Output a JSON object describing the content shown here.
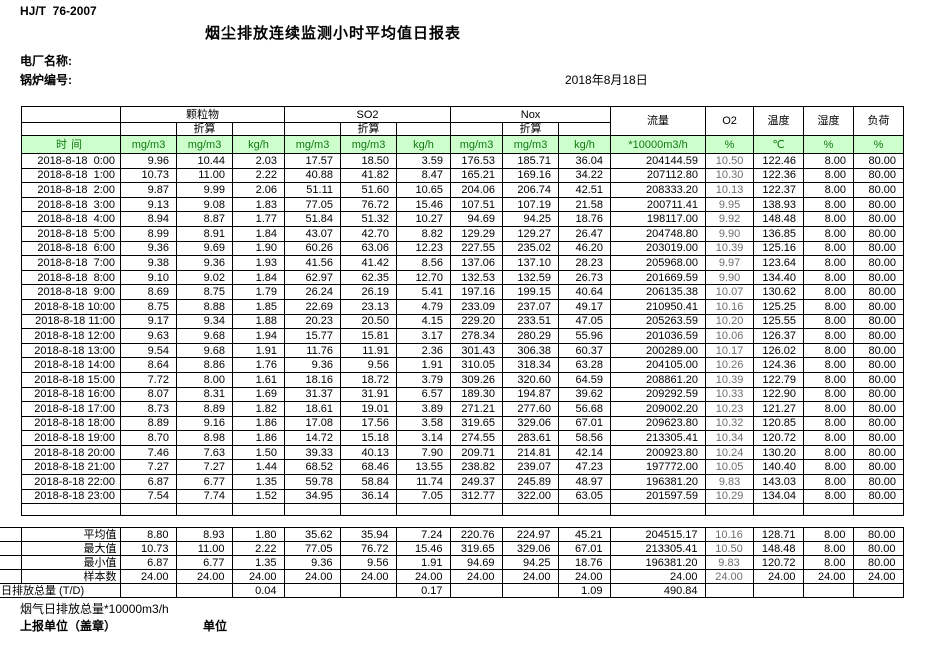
{
  "header": {
    "standard": "HJ/T  76-2007",
    "title": "烟尘排放连续监测小时平均值日报表",
    "plant_label": "电厂名称:",
    "boiler_label": "锅炉编号:",
    "date": "2018年8月18日"
  },
  "table": {
    "groups": {
      "pm": "颗粒物",
      "so2": "SO2",
      "nox": "Nox",
      "converted": "折算",
      "flow": "流量",
      "o2": "O2",
      "temp": "温度",
      "humidity": "湿度",
      "load": "负荷"
    },
    "units": {
      "time": "时间",
      "mgm3": "mg/m3",
      "kgh": "kg/h",
      "flow": "*10000m3/h",
      "percent": "%",
      "celsius": "℃"
    },
    "rows": [
      [
        "2018-8-18  0:00",
        "9.96",
        "10.44",
        "2.03",
        "17.57",
        "18.50",
        "3.59",
        "176.53",
        "185.71",
        "36.04",
        "204144.59",
        "10.50",
        "122.46",
        "8.00",
        "80.00"
      ],
      [
        "2018-8-18  1:00",
        "10.73",
        "11.00",
        "2.22",
        "40.88",
        "41.82",
        "8.47",
        "165.21",
        "169.16",
        "34.22",
        "207112.80",
        "10.30",
        "122.36",
        "8.00",
        "80.00"
      ],
      [
        "2018-8-18  2:00",
        "9.87",
        "9.99",
        "2.06",
        "51.11",
        "51.60",
        "10.65",
        "204.06",
        "206.74",
        "42.51",
        "208333.20",
        "10.13",
        "122.37",
        "8.00",
        "80.00"
      ],
      [
        "2018-8-18  3:00",
        "9.13",
        "9.08",
        "1.83",
        "77.05",
        "76.72",
        "15.46",
        "107.51",
        "107.19",
        "21.58",
        "200711.41",
        "9.95",
        "138.93",
        "8.00",
        "80.00"
      ],
      [
        "2018-8-18  4:00",
        "8.94",
        "8.87",
        "1.77",
        "51.84",
        "51.32",
        "10.27",
        "94.69",
        "94.25",
        "18.76",
        "198117.00",
        "9.92",
        "148.48",
        "8.00",
        "80.00"
      ],
      [
        "2018-8-18  5:00",
        "8.99",
        "8.91",
        "1.84",
        "43.07",
        "42.70",
        "8.82",
        "129.29",
        "129.27",
        "26.47",
        "204748.80",
        "9.90",
        "136.85",
        "8.00",
        "80.00"
      ],
      [
        "2018-8-18  6:00",
        "9.36",
        "9.69",
        "1.90",
        "60.26",
        "63.06",
        "12.23",
        "227.55",
        "235.02",
        "46.20",
        "203019.00",
        "10.39",
        "125.16",
        "8.00",
        "80.00"
      ],
      [
        "2018-8-18  7:00",
        "9.38",
        "9.36",
        "1.93",
        "41.56",
        "41.42",
        "8.56",
        "137.06",
        "137.10",
        "28.23",
        "205968.00",
        "9.97",
        "123.64",
        "8.00",
        "80.00"
      ],
      [
        "2018-8-18  8:00",
        "9.10",
        "9.02",
        "1.84",
        "62.97",
        "62.35",
        "12.70",
        "132.53",
        "132.59",
        "26.73",
        "201669.59",
        "9.90",
        "134.40",
        "8.00",
        "80.00"
      ],
      [
        "2018-8-18  9:00",
        "8.69",
        "8.75",
        "1.79",
        "26.24",
        "26.19",
        "5.41",
        "197.16",
        "199.15",
        "40.64",
        "206135.38",
        "10.07",
        "130.62",
        "8.00",
        "80.00"
      ],
      [
        "2018-8-18 10:00",
        "8.75",
        "8.88",
        "1.85",
        "22.69",
        "23.13",
        "4.79",
        "233.09",
        "237.07",
        "49.17",
        "210950.41",
        "10.16",
        "125.25",
        "8.00",
        "80.00"
      ],
      [
        "2018-8-18 11:00",
        "9.17",
        "9.34",
        "1.88",
        "20.23",
        "20.50",
        "4.15",
        "229.20",
        "233.51",
        "47.05",
        "205263.59",
        "10.20",
        "125.55",
        "8.00",
        "80.00"
      ],
      [
        "2018-8-18 12:00",
        "9.63",
        "9.68",
        "1.94",
        "15.77",
        "15.81",
        "3.17",
        "278.34",
        "280.29",
        "55.96",
        "201036.59",
        "10.06",
        "126.37",
        "8.00",
        "80.00"
      ],
      [
        "2018-8-18 13:00",
        "9.54",
        "9.68",
        "1.91",
        "11.76",
        "11.91",
        "2.36",
        "301.43",
        "306.38",
        "60.37",
        "200289.00",
        "10.17",
        "126.02",
        "8.00",
        "80.00"
      ],
      [
        "2018-8-18 14:00",
        "8.64",
        "8.86",
        "1.76",
        "9.36",
        "9.56",
        "1.91",
        "310.05",
        "318.34",
        "63.28",
        "204105.00",
        "10.26",
        "124.36",
        "8.00",
        "80.00"
      ],
      [
        "2018-8-18 15:00",
        "7.72",
        "8.00",
        "1.61",
        "18.16",
        "18.72",
        "3.79",
        "309.26",
        "320.60",
        "64.59",
        "208861.20",
        "10.39",
        "122.79",
        "8.00",
        "80.00"
      ],
      [
        "2018-8-18 16:00",
        "8.07",
        "8.31",
        "1.69",
        "31.37",
        "31.91",
        "6.57",
        "189.30",
        "194.87",
        "39.62",
        "209292.59",
        "10.33",
        "122.90",
        "8.00",
        "80.00"
      ],
      [
        "2018-8-18 17:00",
        "8.73",
        "8.89",
        "1.82",
        "18.61",
        "19.01",
        "3.89",
        "271.21",
        "277.60",
        "56.68",
        "209002.20",
        "10.23",
        "121.27",
        "8.00",
        "80.00"
      ],
      [
        "2018-8-18 18:00",
        "8.89",
        "9.16",
        "1.86",
        "17.08",
        "17.56",
        "3.58",
        "319.65",
        "329.06",
        "67.01",
        "209623.80",
        "10.32",
        "120.85",
        "8.00",
        "80.00"
      ],
      [
        "2018-8-18 19:00",
        "8.70",
        "8.98",
        "1.86",
        "14.72",
        "15.18",
        "3.14",
        "274.55",
        "283.61",
        "58.56",
        "213305.41",
        "10.34",
        "120.72",
        "8.00",
        "80.00"
      ],
      [
        "2018-8-18 20:00",
        "7.46",
        "7.63",
        "1.50",
        "39.33",
        "40.13",
        "7.90",
        "209.71",
        "214.81",
        "42.14",
        "200923.80",
        "10.24",
        "130.20",
        "8.00",
        "80.00"
      ],
      [
        "2018-8-18 21:00",
        "7.27",
        "7.27",
        "1.44",
        "68.52",
        "68.46",
        "13.55",
        "238.82",
        "239.07",
        "47.23",
        "197772.00",
        "10.05",
        "140.40",
        "8.00",
        "80.00"
      ],
      [
        "2018-8-18 22:00",
        "6.87",
        "6.77",
        "1.35",
        "59.78",
        "58.84",
        "11.74",
        "249.37",
        "245.89",
        "48.97",
        "196381.20",
        "9.83",
        "143.03",
        "8.00",
        "80.00"
      ],
      [
        "2018-8-18 23:00",
        "7.54",
        "7.74",
        "1.52",
        "34.95",
        "36.14",
        "7.05",
        "312.77",
        "322.00",
        "63.05",
        "201597.59",
        "10.29",
        "134.04",
        "8.00",
        "80.00"
      ]
    ],
    "summary": [
      [
        "平均值",
        "8.80",
        "8.93",
        "1.80",
        "35.62",
        "35.94",
        "7.24",
        "220.76",
        "224.97",
        "45.21",
        "204515.17",
        "10.16",
        "128.71",
        "8.00",
        "80.00"
      ],
      [
        "最大值",
        "10.73",
        "11.00",
        "2.22",
        "77.05",
        "76.72",
        "15.46",
        "319.65",
        "329.06",
        "67.01",
        "213305.41",
        "10.50",
        "148.48",
        "8.00",
        "80.00"
      ],
      [
        "最小值",
        "6.87",
        "6.77",
        "1.35",
        "9.36",
        "9.56",
        "1.91",
        "94.69",
        "94.25",
        "18.76",
        "196381.20",
        "9.83",
        "120.72",
        "8.00",
        "80.00"
      ],
      [
        "样本数",
        "24.00",
        "24.00",
        "24.00",
        "24.00",
        "24.00",
        "24.00",
        "24.00",
        "24.00",
        "24.00",
        "24.00",
        "24.00",
        "24.00",
        "24.00",
        "24.00"
      ],
      [
        "日排放总量 (T/D)",
        "",
        "",
        "0.04",
        "",
        "",
        "0.17",
        "",
        "",
        "1.09",
        "490.84",
        "",
        "",
        "",
        ""
      ]
    ]
  },
  "footer": {
    "note": "烟气日排放总量*10000m3/h",
    "reporting_unit": "上报单位（盖章）",
    "unit": "单位"
  },
  "colors": {
    "header_row_bg": "#ccffcc",
    "header_row_text": "#117a11",
    "o2_value_text": "#6e6e6e",
    "border": "#000000"
  }
}
